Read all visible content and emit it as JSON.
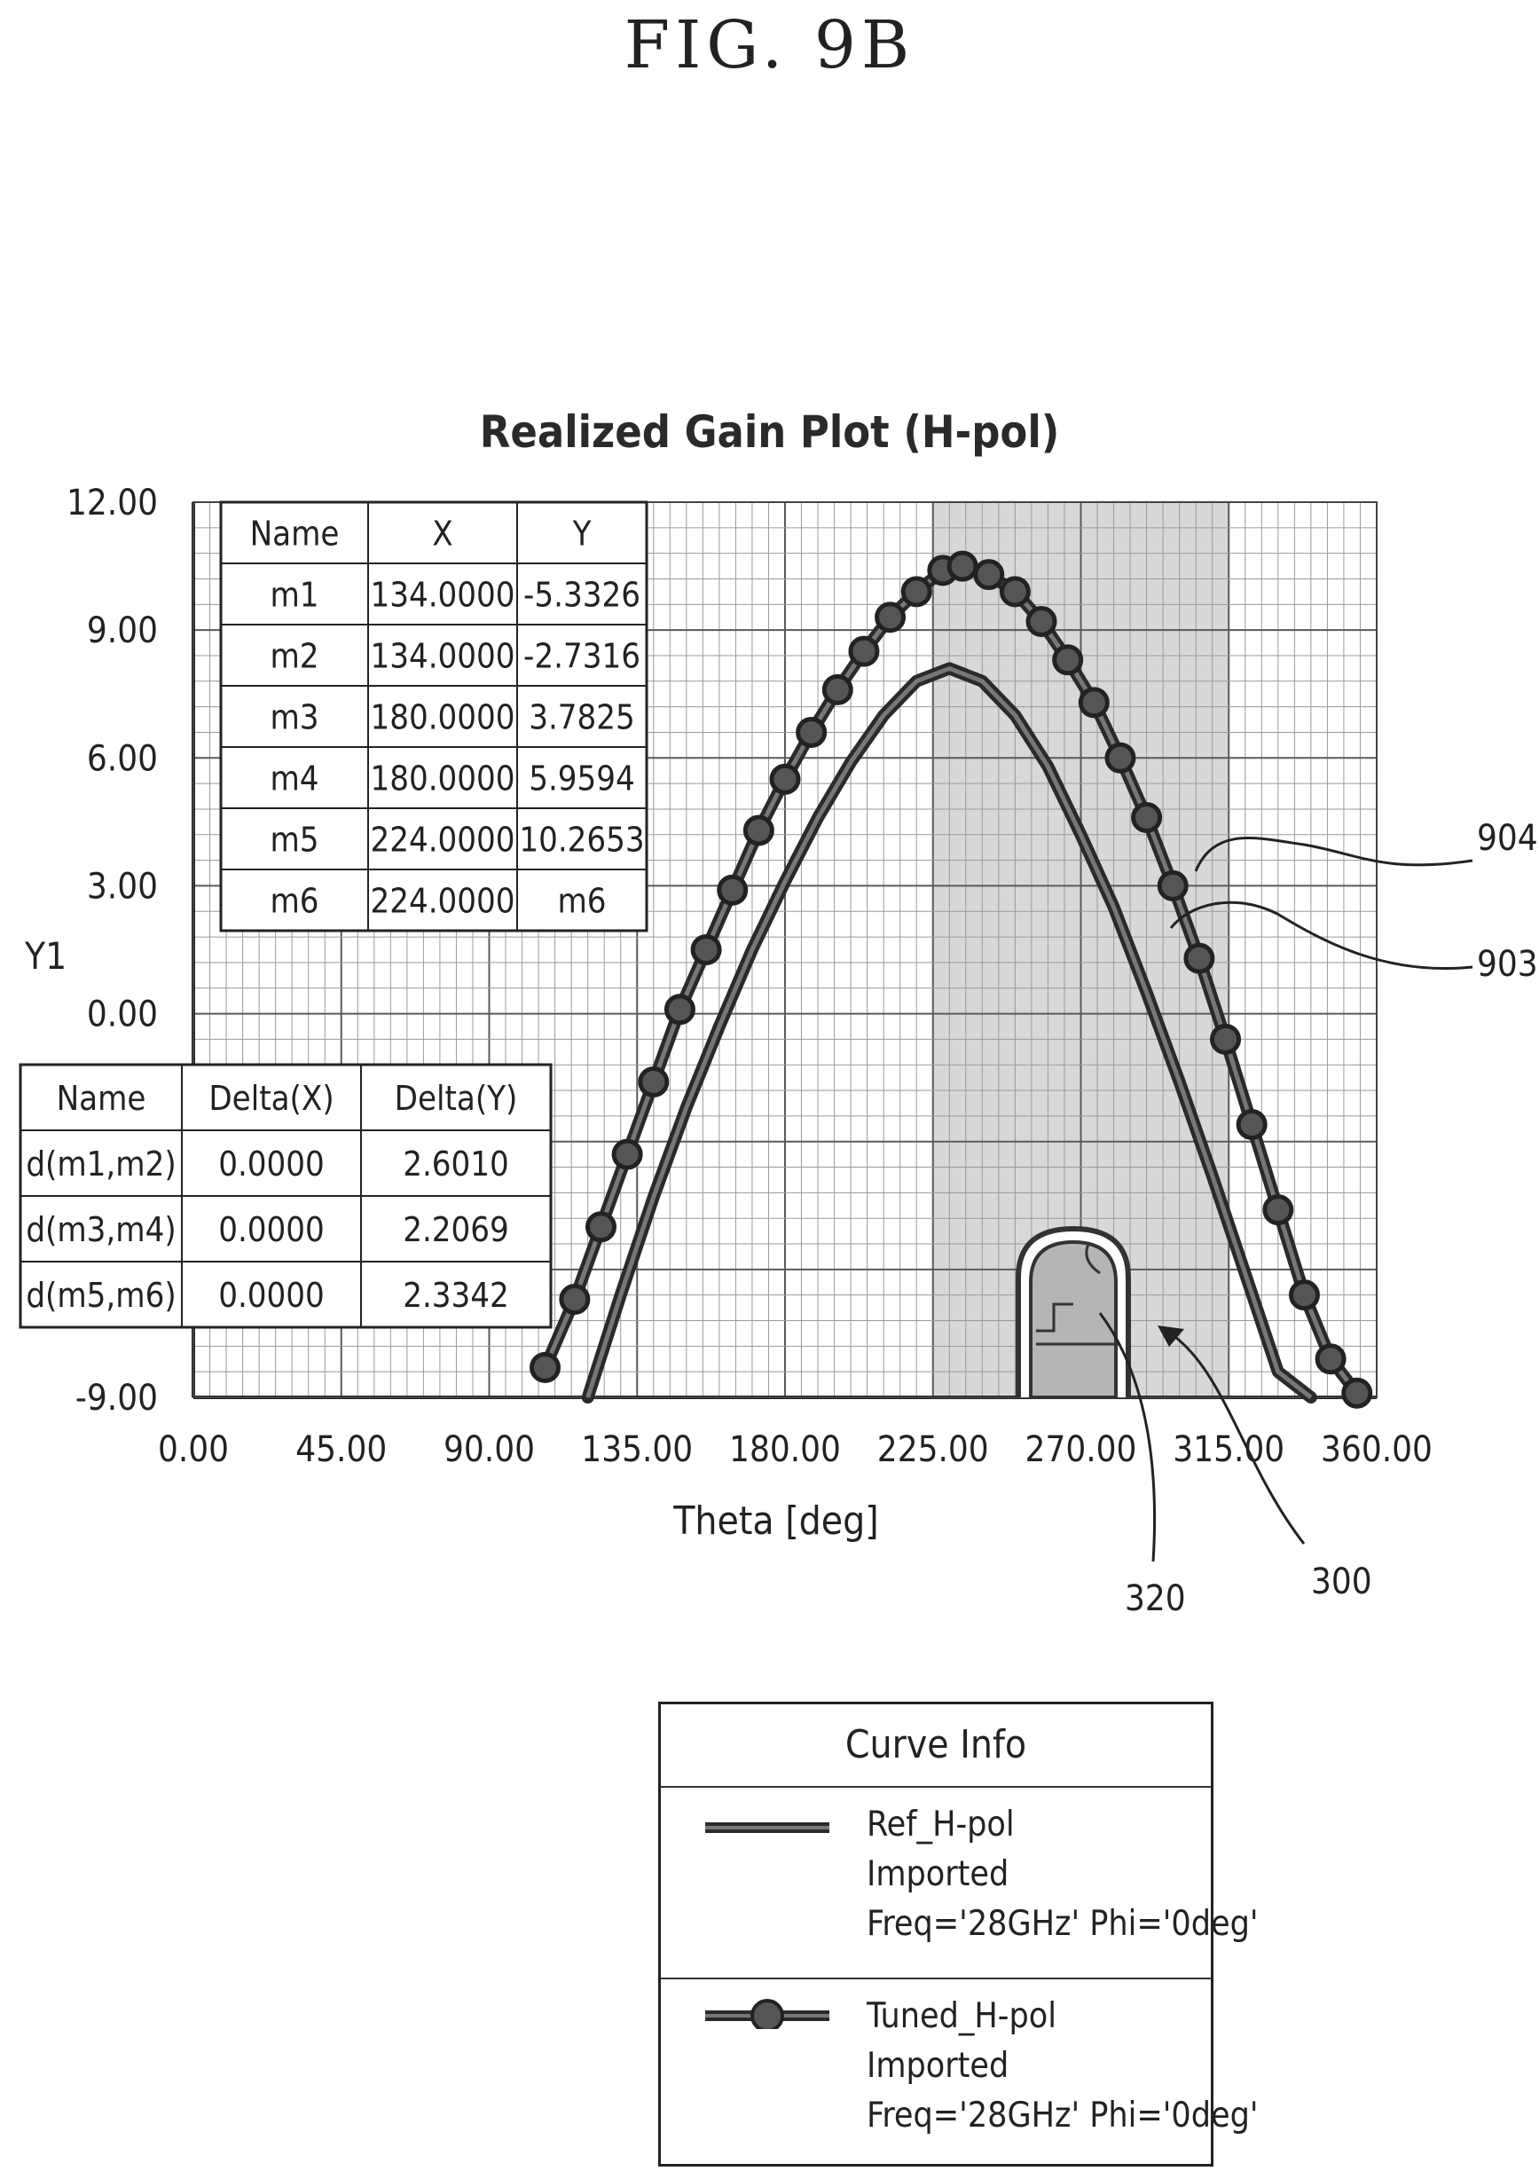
{
  "figure_label": "FIG. 9B",
  "colors": {
    "curve": "#2a2a2a",
    "grid_major": "#5a5a5a",
    "grid_minor": "#9a9a9a",
    "shaded_region": "#d8d8d8",
    "device": "#b5b5b5"
  },
  "chart_data": {
    "type": "line",
    "title": "Realized Gain Plot (H-pol)",
    "xlabel": "Theta [deg]",
    "ylabel": "Y1",
    "xlim": [
      0,
      360
    ],
    "ylim": [
      -9,
      12
    ],
    "xticks": [
      "0.00",
      "45.00",
      "90.00",
      "135.00",
      "180.00",
      "225.00",
      "270.00",
      "315.00",
      "360.00"
    ],
    "yticks": [
      "12.00",
      "9.00",
      "6.00",
      "3.00",
      "0.00",
      "-9.00"
    ],
    "grid": true,
    "shaded_x_range": [
      225,
      315
    ],
    "series": [
      {
        "name": "Ref_H-pol",
        "marker": "none",
        "x": [
          120,
          130,
          140,
          150,
          160,
          170,
          180,
          190,
          200,
          210,
          220,
          230,
          240,
          250,
          260,
          270,
          280,
          290,
          300,
          310,
          320,
          330,
          340
        ],
        "y": [
          -9.0,
          -6.6,
          -4.3,
          -2.2,
          -0.3,
          1.5,
          3.1,
          4.6,
          5.9,
          7.0,
          7.8,
          8.1,
          7.8,
          7.0,
          5.8,
          4.2,
          2.5,
          0.5,
          -1.6,
          -3.8,
          -6.1,
          -8.4,
          -9.0
        ]
      },
      {
        "name": "Tuned_H-pol",
        "marker": "circle",
        "x": [
          107,
          116,
          124,
          132,
          140,
          148,
          156,
          164,
          172,
          180,
          188,
          196,
          204,
          212,
          220,
          228,
          234,
          242,
          250,
          258,
          266,
          274,
          282,
          290,
          298,
          306,
          314,
          322,
          330,
          338,
          346,
          354
        ],
        "y": [
          -8.3,
          -6.7,
          -5.0,
          -3.3,
          -1.6,
          0.1,
          1.5,
          2.9,
          4.3,
          5.5,
          6.6,
          7.6,
          8.5,
          9.3,
          9.9,
          10.4,
          10.5,
          10.3,
          9.9,
          9.2,
          8.3,
          7.3,
          6.0,
          4.6,
          3.0,
          1.3,
          -0.6,
          -2.6,
          -4.6,
          -6.6,
          -8.1,
          -8.9
        ]
      }
    ],
    "markers_table": {
      "headers": [
        "Name",
        "X",
        "Y"
      ],
      "rows": [
        [
          "m1",
          "134.0000",
          "-5.3326"
        ],
        [
          "m2",
          "134.0000",
          "-2.7316"
        ],
        [
          "m3",
          "180.0000",
          "3.7825"
        ],
        [
          "m4",
          "180.0000",
          "5.9594"
        ],
        [
          "m5",
          "224.0000",
          "10.2653"
        ],
        [
          "m6",
          "224.0000",
          "m6"
        ]
      ]
    },
    "delta_table": {
      "headers": [
        "Name",
        "Delta(X)",
        "Delta(Y)"
      ],
      "rows": [
        [
          "d(m1,m2)",
          "0.0000",
          "2.6010"
        ],
        [
          "d(m3,m4)",
          "0.0000",
          "2.2069"
        ],
        [
          "d(m5,m6)",
          "0.0000",
          "2.3342"
        ]
      ]
    },
    "annotations": [
      "904",
      "903",
      "320",
      "300"
    ]
  },
  "legend": {
    "title": "Curve Info",
    "entries": [
      {
        "name": "Ref_H-pol",
        "source": "Imported",
        "params": "Freq='28GHz' Phi='0deg'"
      },
      {
        "name": "Tuned_H-pol",
        "source": "Imported",
        "params": "Freq='28GHz' Phi='0deg'"
      }
    ]
  }
}
